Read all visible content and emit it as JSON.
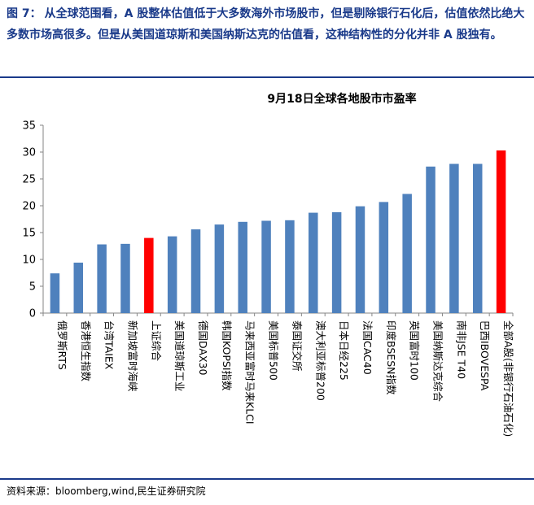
{
  "caption": {
    "label": "图 7：",
    "text": "从全球范围看，A 股整体估值低于大多数海外市场股市，但是剔除银行石化后，估值依然比绝大多数市场高很多。但是从美国道琼斯和美国纳斯达克的估值看，这种结构性的分化并非 A 股独有。"
  },
  "source": "资料来源：bloomberg,wind,民生证券研究院",
  "colors": {
    "blue": "#4f81bd",
    "red": "#ff0000",
    "accent": "#1a3a8a"
  },
  "chart_data": {
    "type": "bar",
    "title": "9月18日全球各地股市市盈率",
    "xlabel": "",
    "ylabel": "",
    "ylim": [
      0,
      35
    ],
    "yticks": [
      0,
      5,
      10,
      15,
      20,
      25,
      30,
      35
    ],
    "grid": false,
    "categories": [
      "俄罗斯RTS",
      "香港恒生指数",
      "台湾TAIEX",
      "新加坡富时海峡",
      "上证综合",
      "美国道琼斯工业",
      "德国DAX30",
      "韩国KOPSI指数",
      "马来西亚富时马来KLCI",
      "美国标普500",
      "泰国证交所",
      "澳大利亚标普200",
      "日本日经225",
      "法国CAC40",
      "印度BSESN指数",
      "英国富时100",
      "美国纳斯达克综合",
      "南非JSE T40",
      "巴西IBOVESPA",
      "全部A股(非银行石油石化)"
    ],
    "values": [
      7.4,
      9.4,
      12.8,
      12.9,
      14.0,
      14.3,
      15.6,
      16.5,
      17.0,
      17.2,
      17.3,
      18.7,
      18.8,
      19.9,
      20.7,
      22.2,
      27.3,
      27.8,
      27.8,
      30.3
    ],
    "highlight": [
      false,
      false,
      false,
      false,
      true,
      false,
      false,
      false,
      false,
      false,
      false,
      false,
      false,
      false,
      false,
      false,
      false,
      false,
      false,
      true
    ]
  }
}
